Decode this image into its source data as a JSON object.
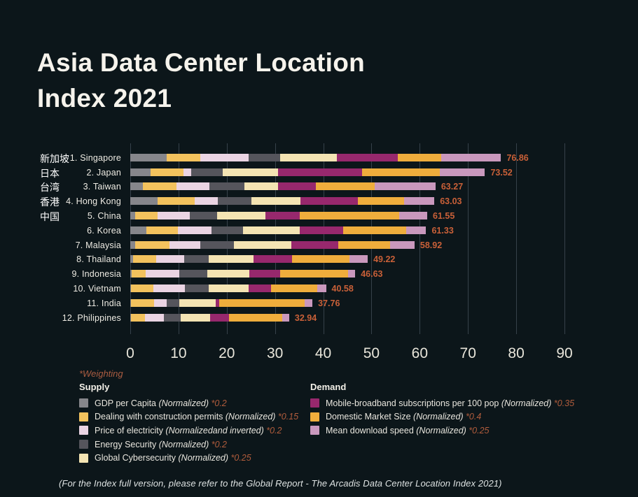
{
  "title": {
    "line1": "Asia Data Center Location",
    "line2": "Index 2021"
  },
  "colors": {
    "background": "#0c161a",
    "gridline": "#36414a",
    "value_label": "#c96038",
    "weighting_text": "#aa5c41"
  },
  "chart_data": {
    "type": "bar",
    "stacked": true,
    "orientation": "horizontal",
    "title": "Asia Data Center Location Index 2021",
    "xlabel": "",
    "ylabel": "",
    "xlim": [
      0,
      90
    ],
    "x_ticks": [
      0,
      10,
      20,
      30,
      40,
      50,
      60,
      70,
      80,
      90
    ],
    "grid": "vertical",
    "segments": [
      {
        "key": "gdp",
        "label": "GDP per Capita",
        "group": "Supply",
        "color": "#86868b"
      },
      {
        "key": "permits",
        "label": "Dealing with construction permits",
        "group": "Supply",
        "color": "#f3c25d"
      },
      {
        "key": "electricity",
        "label": "Price of electricity",
        "group": "Supply",
        "color": "#ead4e3"
      },
      {
        "key": "energy",
        "label": "Energy Security",
        "group": "Supply",
        "color": "#55555c"
      },
      {
        "key": "cyber",
        "label": "Global Cybersecurity",
        "group": "Supply",
        "color": "#f4e4b3"
      },
      {
        "key": "mobile",
        "label": "Mobile-broadband subscriptions per 100 pop",
        "group": "Demand",
        "color": "#97286d"
      },
      {
        "key": "market",
        "label": "Domestic Market Size",
        "group": "Demand",
        "color": "#efad3c"
      },
      {
        "key": "download",
        "label": "Mean download speed",
        "group": "Demand",
        "color": "#c998bd"
      }
    ],
    "rows": [
      {
        "cn": "新加坡",
        "label": "1. Singapore",
        "total": "76.86",
        "values": [
          7.5,
          7.0,
          10.0,
          6.5,
          11.8,
          12.7,
          8.9,
          12.46
        ]
      },
      {
        "cn": "日本",
        "label": "2. Japan",
        "total": "73.52",
        "values": [
          4.2,
          6.9,
          1.5,
          6.5,
          11.6,
          17.3,
          16.2,
          9.32
        ]
      },
      {
        "cn": "台湾",
        "label": "3. Taiwan",
        "total": "63.27",
        "values": [
          2.6,
          7.0,
          6.8,
          7.3,
          7.0,
          7.8,
          12.2,
          12.57
        ]
      },
      {
        "cn": "香港",
        "label": "4. Hong Kong",
        "total": "63.03",
        "values": [
          5.6,
          7.7,
          4.9,
          6.9,
          10.2,
          11.9,
          9.5,
          6.33
        ]
      },
      {
        "cn": "中国",
        "label": "5. China",
        "total": "61.55",
        "values": [
          1.0,
          4.7,
          6.6,
          5.7,
          10.0,
          7.2,
          20.5,
          5.85
        ]
      },
      {
        "cn": "",
        "label": "6. Korea",
        "total": "61.33",
        "values": [
          3.4,
          6.4,
          7.0,
          6.6,
          11.8,
          9.0,
          13.0,
          4.13
        ]
      },
      {
        "cn": "",
        "label": "7. Malaysia",
        "total": "58.92",
        "values": [
          1.0,
          7.2,
          6.3,
          7.0,
          11.9,
          9.7,
          10.8,
          5.02
        ]
      },
      {
        "cn": "",
        "label": "8. Thailand",
        "total": "49.22",
        "values": [
          0.6,
          4.7,
          5.9,
          5.0,
          9.3,
          8.1,
          11.9,
          3.72
        ]
      },
      {
        "cn": "",
        "label": "9. Indonesia",
        "total": "46.63",
        "values": [
          0.3,
          2.9,
          7.0,
          5.7,
          8.8,
          6.4,
          14.0,
          1.53
        ]
      },
      {
        "cn": "",
        "label": "10. Vietnam",
        "total": "40.58",
        "values": [
          0.2,
          4.6,
          6.5,
          5.0,
          8.3,
          4.6,
          9.5,
          1.88
        ]
      },
      {
        "cn": "",
        "label": "11. India",
        "total": "37.76",
        "values": [
          0.2,
          4.7,
          2.7,
          2.5,
          7.6,
          0.8,
          17.7,
          1.56
        ]
      },
      {
        "cn": "",
        "label": "12. Philippines",
        "total": "32.94",
        "values": [
          0.2,
          2.9,
          3.9,
          3.4,
          6.2,
          3.9,
          11.0,
          1.44
        ]
      }
    ]
  },
  "legend": {
    "weighting_label": "*Weighting",
    "supply": {
      "header": "Supply",
      "items": [
        {
          "name": "GDP per Capita",
          "qualifier": "(Normalized)",
          "weight": "*0.2",
          "color": "#86868b"
        },
        {
          "name": "Dealing with construction permits",
          "qualifier": "(Normalized)",
          "weight": "*0.15",
          "color": "#f3c25d"
        },
        {
          "name": "Price of electricity",
          "qualifier": "(Normalizedand inverted)",
          "weight": "*0.2",
          "color": "#ead4e3"
        },
        {
          "name": "Energy Security",
          "qualifier": "(Normalized)",
          "weight": "*0.2",
          "color": "#55555c"
        },
        {
          "name": "Global Cybersecurity",
          "qualifier": "(Normalized)",
          "weight": "*0.25",
          "color": "#f4e4b3"
        }
      ]
    },
    "demand": {
      "header": "Demand",
      "items": [
        {
          "name": "Mobile-broadband subscriptions per 100 pop",
          "qualifier": "(Normalized)",
          "weight": "*0.35",
          "color": "#97286d"
        },
        {
          "name": "Domestic Market Size",
          "qualifier": "(Normalized)",
          "weight": "*0.4",
          "color": "#efad3c"
        },
        {
          "name": "Mean download speed",
          "qualifier": "(Normalized)",
          "weight": "*0.25",
          "color": "#c998bd"
        }
      ]
    }
  },
  "footer": "(For the Index full version, please refer to the Global Report - The Arcadis Data Center Location Index 2021)"
}
